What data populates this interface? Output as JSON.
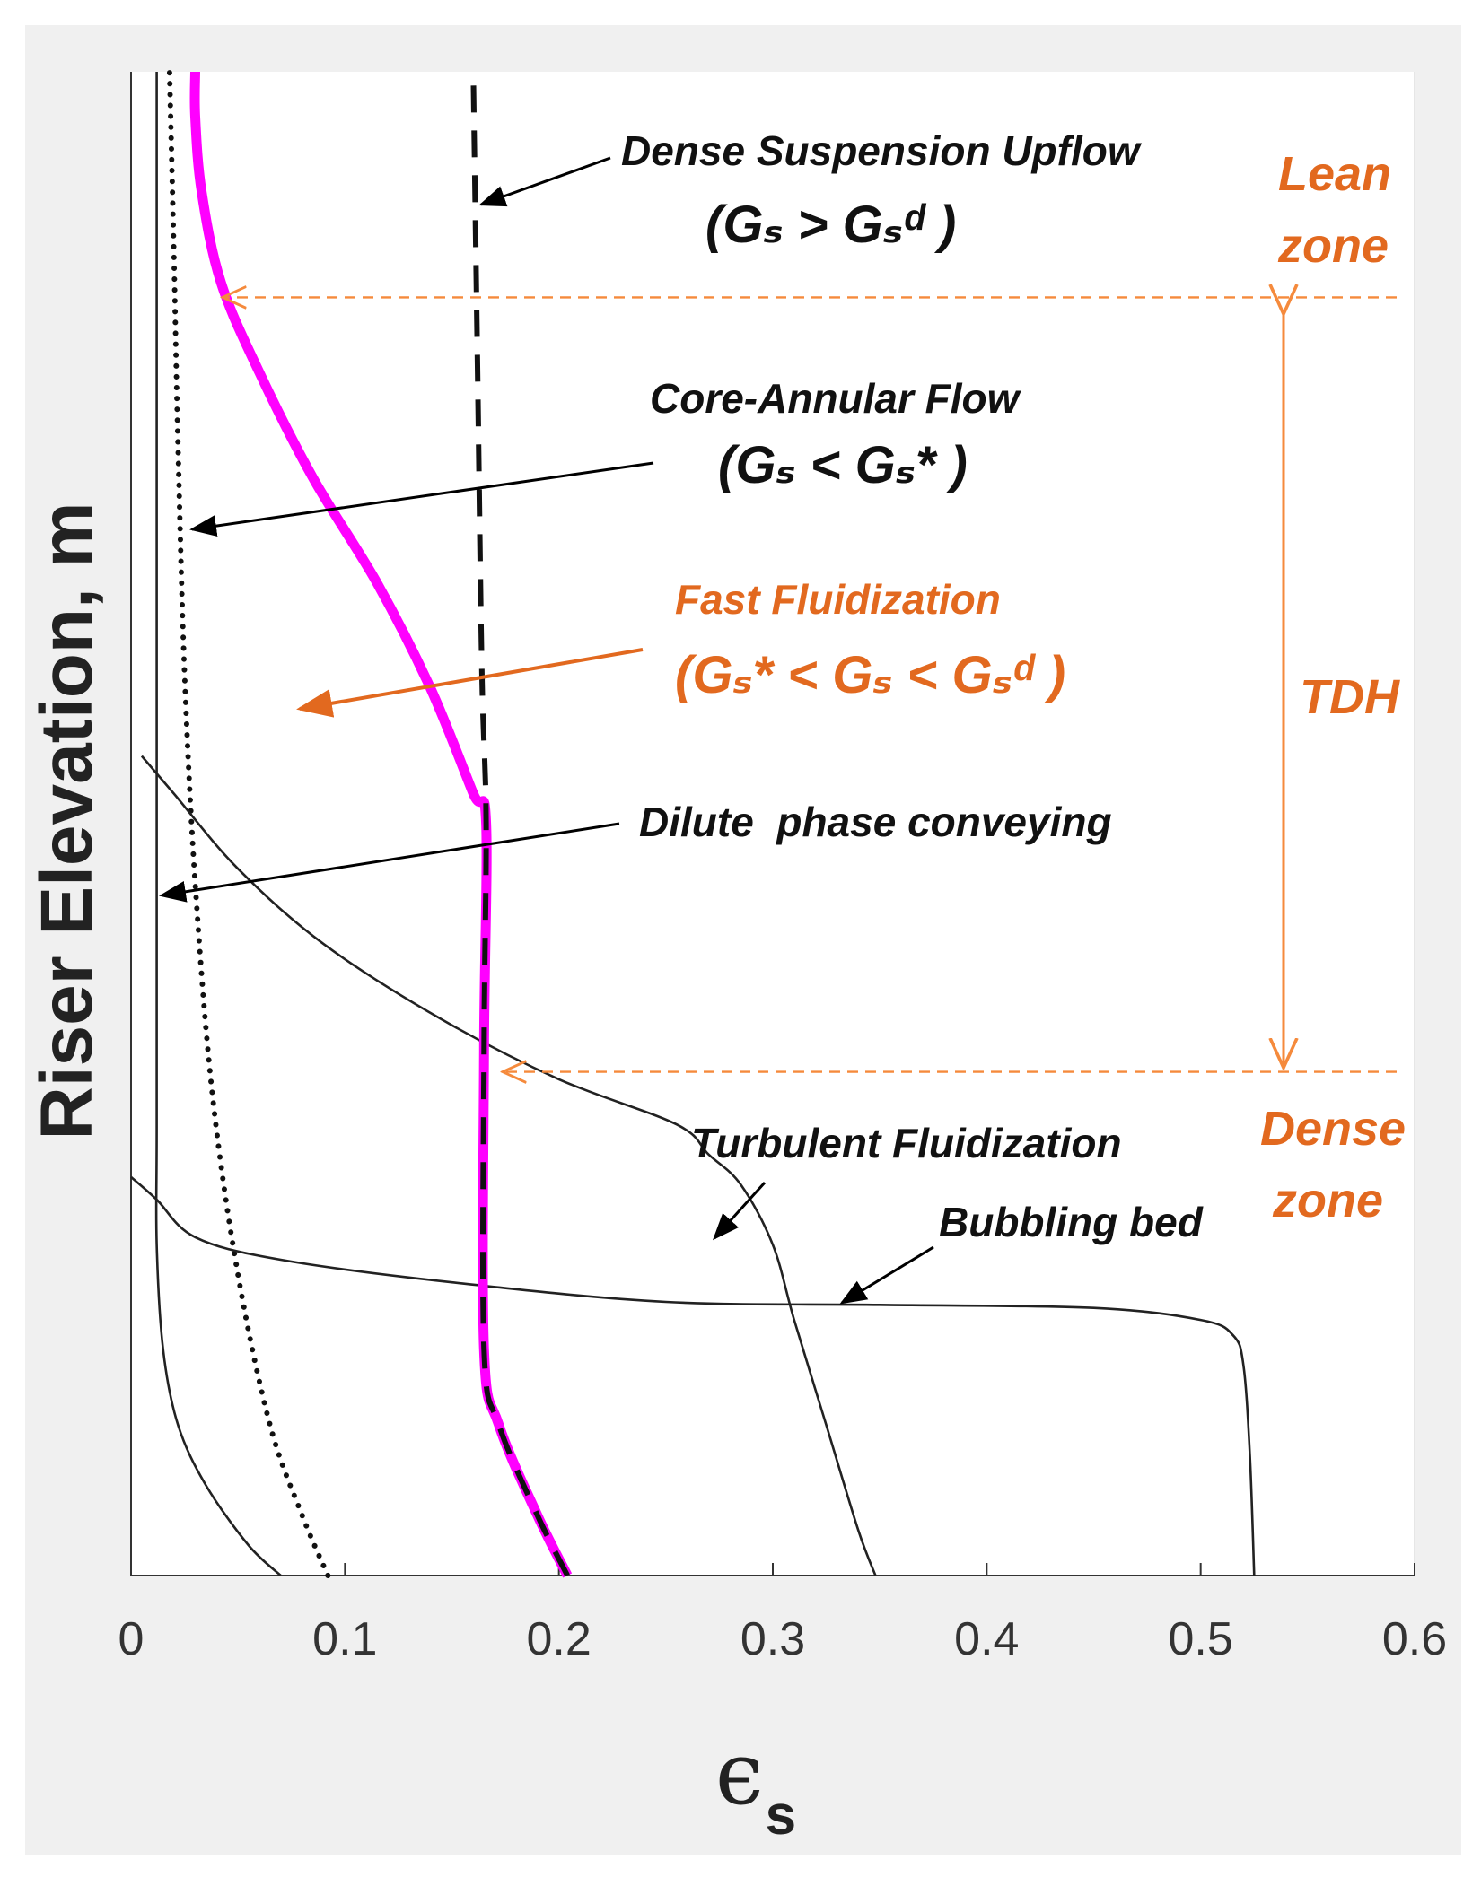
{
  "chart_data": {
    "type": "line",
    "title": "",
    "xlabel": "ϵ",
    "xlabel_sub": "s",
    "ylabel": "Riser Elevation, m",
    "xlim": [
      0,
      0.6
    ],
    "ylim": [
      0,
      1
    ],
    "x_ticks": [
      "0",
      "0.1",
      "0.2",
      "0.3",
      "0.4",
      "0.5",
      "0.6"
    ],
    "x_tick_values": [
      0,
      0.1,
      0.2,
      0.3,
      0.4,
      0.5,
      0.6
    ],
    "grid": false,
    "series": [
      {
        "name": "Dilute phase conveying",
        "style": "solid-thin",
        "color": "#222222",
        "points": [
          [
            0.07,
            0.0
          ],
          [
            0.055,
            0.02
          ],
          [
            0.035,
            0.06
          ],
          [
            0.022,
            0.1
          ],
          [
            0.015,
            0.15
          ],
          [
            0.012,
            0.22
          ],
          [
            0.012,
            0.3
          ],
          [
            0.012,
            0.5
          ],
          [
            0.012,
            0.8
          ],
          [
            0.012,
            1.0
          ]
        ]
      },
      {
        "name": "Core-Annular Flow",
        "style": "dotted",
        "color": "#111111",
        "points": [
          [
            0.092,
            0.0
          ],
          [
            0.08,
            0.04
          ],
          [
            0.065,
            0.1
          ],
          [
            0.05,
            0.2
          ],
          [
            0.038,
            0.32
          ],
          [
            0.03,
            0.46
          ],
          [
            0.025,
            0.6
          ],
          [
            0.022,
            0.75
          ],
          [
            0.02,
            0.88
          ],
          [
            0.018,
            1.0
          ]
        ]
      },
      {
        "name": "Fast Fluidization",
        "style": "solid-thick",
        "color": "#ff00ff",
        "points": [
          [
            0.204,
            0.0
          ],
          [
            0.19,
            0.04
          ],
          [
            0.172,
            0.1
          ],
          [
            0.165,
            0.15
          ],
          [
            0.165,
            0.35
          ],
          [
            0.166,
            0.5
          ],
          [
            0.16,
            0.52
          ],
          [
            0.14,
            0.59
          ],
          [
            0.115,
            0.66
          ],
          [
            0.085,
            0.73
          ],
          [
            0.06,
            0.8
          ],
          [
            0.042,
            0.86
          ],
          [
            0.033,
            0.92
          ],
          [
            0.03,
            0.97
          ],
          [
            0.03,
            1.0
          ]
        ]
      },
      {
        "name": "Dense Suspension Upflow",
        "style": "dashed",
        "color": "#111111",
        "points": [
          [
            0.204,
            0.0
          ],
          [
            0.19,
            0.04
          ],
          [
            0.172,
            0.1
          ],
          [
            0.165,
            0.15
          ],
          [
            0.165,
            0.35
          ],
          [
            0.166,
            0.5
          ],
          [
            0.164,
            0.6
          ],
          [
            0.162,
            0.8
          ],
          [
            0.16,
            1.0
          ]
        ]
      },
      {
        "name": "Turbulent Fluidization",
        "style": "solid-thin",
        "color": "#222222",
        "points": [
          [
            0.348,
            0.0
          ],
          [
            0.34,
            0.03
          ],
          [
            0.325,
            0.1
          ],
          [
            0.31,
            0.17
          ],
          [
            0.3,
            0.22
          ],
          [
            0.285,
            0.26
          ],
          [
            0.27,
            0.28
          ],
          [
            0.255,
            0.3
          ],
          [
            0.2,
            0.33
          ],
          [
            0.145,
            0.37
          ],
          [
            0.09,
            0.42
          ],
          [
            0.05,
            0.47
          ],
          [
            0.02,
            0.52
          ],
          [
            0.005,
            0.545
          ]
        ]
      },
      {
        "name": "Bubbling bed",
        "style": "solid-thin",
        "color": "#222222",
        "points": [
          [
            0.525,
            0.0
          ],
          [
            0.523,
            0.08
          ],
          [
            0.52,
            0.14
          ],
          [
            0.515,
            0.16
          ],
          [
            0.5,
            0.17
          ],
          [
            0.45,
            0.178
          ],
          [
            0.35,
            0.18
          ],
          [
            0.25,
            0.182
          ],
          [
            0.15,
            0.195
          ],
          [
            0.07,
            0.21
          ],
          [
            0.03,
            0.225
          ],
          [
            0.012,
            0.25
          ],
          [
            0.0,
            0.265
          ]
        ]
      }
    ],
    "reference_lines": [
      {
        "name": "Lean zone boundary",
        "y": 0.85,
        "style": "dashed",
        "color": "#f58a3c"
      },
      {
        "name": "Dense zone boundary",
        "y": 0.335,
        "style": "dashed",
        "color": "#f58a3c"
      }
    ],
    "annotations": {
      "dense_suspension": {
        "title": "Dense Suspension Upflow",
        "formula": "(Gₛ > Gₛᵈ )"
      },
      "core_annular": {
        "title": "Core-Annular Flow",
        "formula": "(Gₛ < Gₛ* )"
      },
      "fast_fluidization": {
        "title": "Fast Fluidization",
        "formula": "(Gₛ* < Gₛ < Gₛᵈ )"
      },
      "dilute": {
        "title": "Dilute  phase conveying"
      },
      "turbulent": {
        "title": "Turbulent Fluidization"
      },
      "bubbling": {
        "title": "Bubbling bed"
      },
      "lean_zone": [
        "Lean",
        "zone"
      ],
      "dense_zone": [
        "Dense",
        "zone"
      ],
      "tdh": "TDH"
    },
    "colors": {
      "axis": "#333333",
      "orange": "#e2691f",
      "orange_light": "#f58a3c",
      "magenta": "#ff00ff",
      "frame_bg": "#f0f0f0"
    }
  }
}
